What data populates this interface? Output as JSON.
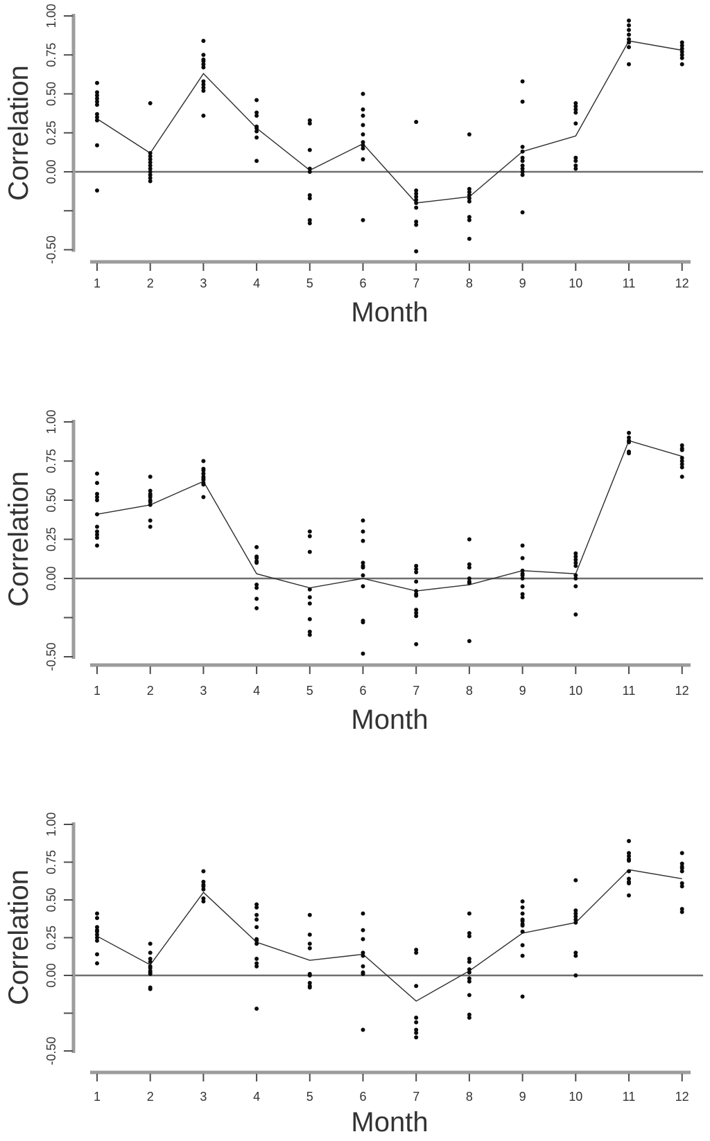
{
  "page": {
    "background": "#ffffff",
    "description": "Three stacked scatter panels of correlation by month with per-month point clouds and a mean line"
  },
  "colors": {
    "axis_bar": "#9c9c9c",
    "tick": "#4d4d4d",
    "zero_line": "#6e6e6e",
    "mean_line": "#2d2d2d",
    "point": "#0b0b0b",
    "text": "#333333"
  },
  "chart_data": [
    {
      "type": "scatter",
      "panel": "top",
      "title": "",
      "xlabel": "Month",
      "ylabel": "Correlation",
      "ylim": [
        -0.55,
        1.0
      ],
      "grid": false,
      "zero_reference_line": 0,
      "x_ticks": [
        "1",
        "2",
        "3",
        "4",
        "5",
        "6",
        "7",
        "8",
        "9",
        "10",
        "11",
        "12"
      ],
      "y_ticks": [
        {
          "v": 1.0,
          "label": "1.00"
        },
        {
          "v": 0.75,
          "label": "0.75"
        },
        {
          "v": 0.5,
          "label": "0.50"
        },
        {
          "v": 0.25,
          "label": "0.25"
        },
        {
          "v": 0.0,
          "label": "0.00"
        },
        {
          "v": -0.25,
          "label": ""
        },
        {
          "v": -0.5,
          "label": "-0.50"
        }
      ],
      "points_by_month": {
        "1": [
          0.57,
          0.51,
          0.49,
          0.47,
          0.45,
          0.43,
          0.37,
          0.35,
          0.33,
          0.17,
          -0.12
        ],
        "2": [
          0.44,
          0.12,
          0.1,
          0.08,
          0.06,
          0.04,
          0.02,
          0.0,
          -0.02,
          -0.04,
          -0.06
        ],
        "3": [
          0.84,
          0.75,
          0.72,
          0.71,
          0.69,
          0.67,
          0.58,
          0.56,
          0.54,
          0.52,
          0.36
        ],
        "4": [
          0.46,
          0.38,
          0.36,
          0.29,
          0.28,
          0.26,
          0.22,
          0.07
        ],
        "5": [
          0.33,
          0.31,
          0.14,
          0.02,
          0.0,
          -0.15,
          -0.17,
          -0.31,
          -0.33
        ],
        "6": [
          0.5,
          0.4,
          0.36,
          0.3,
          0.24,
          0.19,
          0.17,
          0.15,
          0.08,
          -0.31
        ],
        "7": [
          0.32,
          -0.12,
          -0.14,
          -0.16,
          -0.18,
          -0.2,
          -0.23,
          -0.32,
          -0.34,
          -0.51
        ],
        "8": [
          0.24,
          -0.11,
          -0.13,
          -0.15,
          -0.17,
          -0.19,
          -0.29,
          -0.31,
          -0.43
        ],
        "9": [
          0.58,
          0.45,
          0.16,
          0.13,
          0.09,
          0.07,
          0.04,
          0.02,
          0.0,
          -0.02,
          -0.26
        ],
        "10": [
          0.44,
          0.42,
          0.4,
          0.38,
          0.31,
          0.09,
          0.07,
          0.04,
          0.02
        ],
        "11": [
          0.97,
          0.94,
          0.91,
          0.88,
          0.85,
          0.83,
          0.8,
          0.69
        ],
        "12": [
          0.83,
          0.81,
          0.79,
          0.77,
          0.75,
          0.73,
          0.69
        ]
      },
      "mean_line": [
        0.34,
        0.12,
        0.63,
        0.28,
        0.01,
        0.18,
        -0.2,
        -0.16,
        0.13,
        0.23,
        0.84,
        0.78
      ]
    },
    {
      "type": "scatter",
      "panel": "middle",
      "title": "",
      "xlabel": "Month",
      "ylabel": "Correlation",
      "ylim": [
        -0.55,
        1.0
      ],
      "grid": false,
      "zero_reference_line": 0,
      "x_ticks": [
        "1",
        "2",
        "3",
        "4",
        "5",
        "6",
        "7",
        "8",
        "9",
        "10",
        "11",
        "12"
      ],
      "y_ticks": [
        {
          "v": 1.0,
          "label": "1.00"
        },
        {
          "v": 0.75,
          "label": "0.75"
        },
        {
          "v": 0.5,
          "label": "0.50"
        },
        {
          "v": 0.25,
          "label": "0.25"
        },
        {
          "v": 0.0,
          "label": "0.00"
        },
        {
          "v": -0.25,
          "label": ""
        },
        {
          "v": -0.5,
          "label": "-0.50"
        }
      ],
      "points_by_month": {
        "1": [
          0.67,
          0.61,
          0.54,
          0.52,
          0.5,
          0.41,
          0.33,
          0.3,
          0.28,
          0.26,
          0.21
        ],
        "2": [
          0.65,
          0.56,
          0.54,
          0.53,
          0.52,
          0.5,
          0.49,
          0.47,
          0.37,
          0.33
        ],
        "3": [
          0.75,
          0.7,
          0.69,
          0.67,
          0.65,
          0.64,
          0.63,
          0.61,
          0.6,
          0.52
        ],
        "4": [
          0.2,
          0.14,
          0.13,
          0.11,
          0.1,
          -0.04,
          -0.06,
          -0.13,
          -0.19
        ],
        "5": [
          0.3,
          0.27,
          0.17,
          -0.07,
          -0.12,
          -0.16,
          -0.26,
          -0.34,
          -0.36
        ],
        "6": [
          0.37,
          0.3,
          0.24,
          0.1,
          0.08,
          0.07,
          0.02,
          -0.05,
          -0.27,
          -0.28,
          -0.48
        ],
        "7": [
          0.08,
          0.06,
          0.04,
          -0.02,
          -0.08,
          -0.1,
          -0.11,
          -0.2,
          -0.22,
          -0.24,
          -0.42
        ],
        "8": [
          0.25,
          0.09,
          0.07,
          0.0,
          -0.02,
          -0.03,
          -0.4
        ],
        "9": [
          0.21,
          0.13,
          0.05,
          0.03,
          0.02,
          0.0,
          -0.05,
          -0.1,
          -0.12
        ],
        "10": [
          0.16,
          0.14,
          0.12,
          0.1,
          0.08,
          0.02,
          0.0,
          -0.05,
          -0.23
        ],
        "11": [
          0.93,
          0.9,
          0.88,
          0.87,
          0.81,
          0.8
        ],
        "12": [
          0.85,
          0.83,
          0.82,
          0.77,
          0.75,
          0.73,
          0.71,
          0.65
        ]
      },
      "mean_line": [
        0.41,
        0.47,
        0.62,
        0.03,
        -0.06,
        0.0,
        -0.08,
        -0.04,
        0.05,
        0.03,
        0.88,
        0.78
      ]
    },
    {
      "type": "scatter",
      "panel": "bottom",
      "title": "",
      "xlabel": "Month",
      "ylabel": "Correlation",
      "ylim": [
        -0.55,
        1.0
      ],
      "grid": false,
      "zero_reference_line": 0,
      "x_ticks": [
        "1",
        "2",
        "3",
        "4",
        "5",
        "6",
        "7",
        "8",
        "9",
        "10",
        "11",
        "12"
      ],
      "y_ticks": [
        {
          "v": 1.0,
          "label": "1.00"
        },
        {
          "v": 0.75,
          "label": "0.75"
        },
        {
          "v": 0.5,
          "label": "0.50"
        },
        {
          "v": 0.25,
          "label": "0.25"
        },
        {
          "v": 0.0,
          "label": "0.00"
        },
        {
          "v": -0.25,
          "label": ""
        },
        {
          "v": -0.5,
          "label": "-0.50"
        }
      ],
      "points_by_month": {
        "1": [
          0.41,
          0.38,
          0.32,
          0.3,
          0.29,
          0.27,
          0.25,
          0.23,
          0.14,
          0.08
        ],
        "2": [
          0.21,
          0.15,
          0.11,
          0.09,
          0.06,
          0.05,
          0.03,
          0.02,
          0.01,
          -0.08,
          -0.09
        ],
        "3": [
          0.69,
          0.62,
          0.6,
          0.59,
          0.57,
          0.51,
          0.49
        ],
        "4": [
          0.47,
          0.45,
          0.4,
          0.37,
          0.32,
          0.24,
          0.23,
          0.21,
          0.11,
          0.08,
          0.06,
          -0.22
        ],
        "5": [
          0.4,
          0.27,
          0.21,
          0.18,
          0.01,
          0.0,
          -0.05,
          -0.07,
          -0.08
        ],
        "6": [
          0.41,
          0.3,
          0.24,
          0.15,
          0.13,
          0.06,
          0.02,
          0.01,
          -0.36
        ],
        "7": [
          0.17,
          0.15,
          -0.07,
          -0.28,
          -0.31,
          -0.36,
          -0.38,
          -0.41
        ],
        "8": [
          0.41,
          0.28,
          0.26,
          0.11,
          0.09,
          0.04,
          0.02,
          -0.02,
          -0.04,
          -0.13,
          -0.26,
          -0.28
        ],
        "9": [
          0.49,
          0.45,
          0.41,
          0.37,
          0.36,
          0.34,
          0.33,
          0.29,
          0.2,
          0.13,
          -0.14
        ],
        "10": [
          0.63,
          0.43,
          0.41,
          0.39,
          0.37,
          0.35,
          0.15,
          0.13,
          0.0
        ],
        "11": [
          0.89,
          0.81,
          0.79,
          0.77,
          0.76,
          0.69,
          0.64,
          0.62,
          0.61,
          0.53
        ],
        "12": [
          0.81,
          0.74,
          0.72,
          0.71,
          0.69,
          0.61,
          0.59,
          0.44,
          0.42
        ]
      },
      "mean_line": [
        0.26,
        0.07,
        0.55,
        0.22,
        0.1,
        0.14,
        -0.17,
        0.03,
        0.28,
        0.35,
        0.7,
        0.64
      ]
    }
  ]
}
